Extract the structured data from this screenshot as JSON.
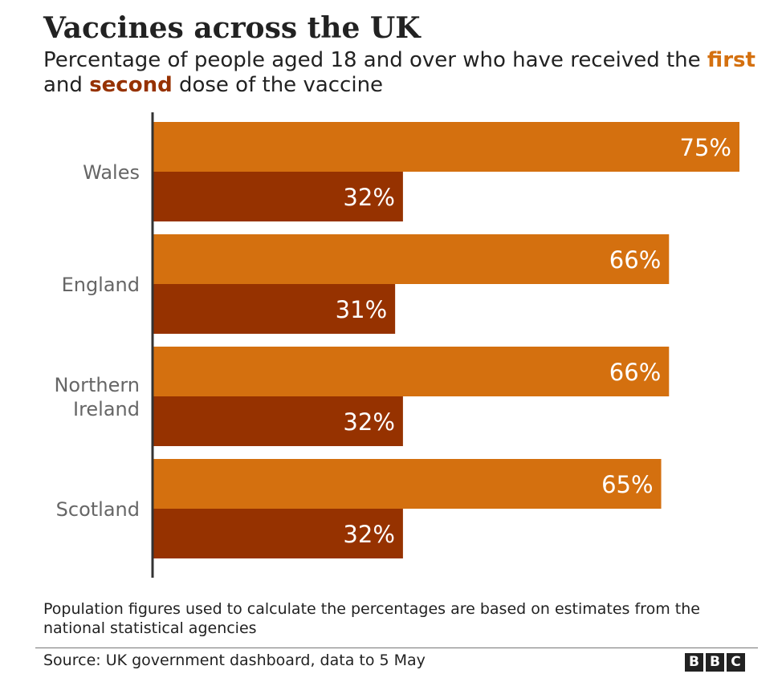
{
  "title": "Vaccines across the UK",
  "subtitle": {
    "part1": "Percentage of people aged 18 and over who have received the ",
    "first": "first",
    "and": " and ",
    "second": "second",
    "part2": " dose of the vaccine"
  },
  "colors": {
    "first": "#D4700F",
    "second": "#963200",
    "axis": "#333333",
    "label": "#666666"
  },
  "chart_data": {
    "type": "bar",
    "orientation": "horizontal",
    "categories": [
      "Wales",
      "England",
      "Northern Ireland",
      "Scotland"
    ],
    "series": [
      {
        "name": "first",
        "values": [
          75,
          66,
          66,
          65
        ]
      },
      {
        "name": "second",
        "values": [
          32,
          31,
          32,
          32
        ]
      }
    ],
    "value_suffix": "%",
    "xlim": [
      0,
      75
    ],
    "grid": false,
    "legend": "in subtitle"
  },
  "footnote": "Population figures used to calculate the percentages are based on estimates from the national statistical agencies",
  "source": "Source: UK government dashboard, data to 5 May",
  "logo_letters": [
    "B",
    "B",
    "C"
  ]
}
